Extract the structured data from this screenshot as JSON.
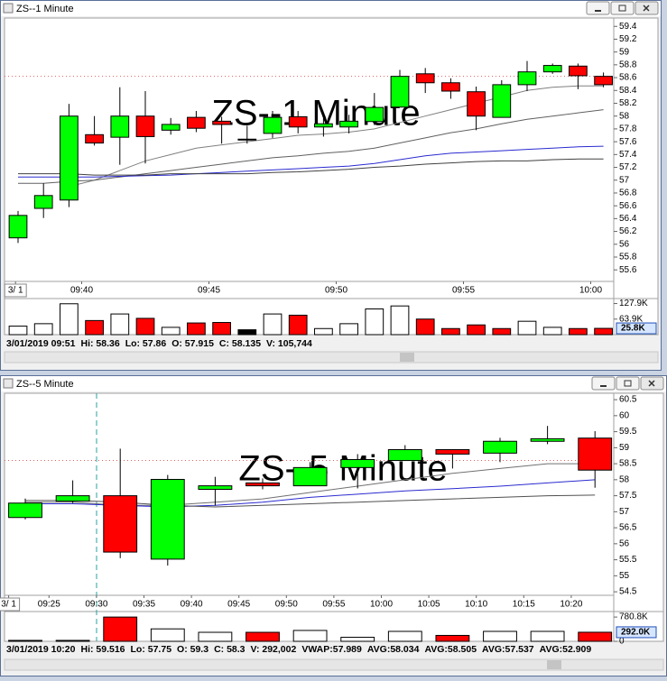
{
  "chart_data": [
    {
      "type": "candlestick",
      "title": "ZS--1 Minute",
      "watermark": "ZS--1 Minute",
      "categories": [
        null,
        null,
        null,
        null,
        null,
        null,
        null,
        null,
        null,
        null,
        null,
        null,
        null,
        null,
        null,
        null,
        null,
        null,
        null,
        null,
        null,
        null,
        null,
        null
      ],
      "open": [
        56.1,
        56.56,
        56.69,
        57.71,
        57.67,
        58.0,
        57.78,
        57.98,
        57.92,
        57.64,
        57.73,
        57.99,
        57.83,
        57.83,
        57.915,
        58.14,
        58.66,
        58.52,
        58.38,
        57.98,
        58.49,
        58.69,
        58.78,
        58.62
      ],
      "high": [
        56.52,
        56.95,
        58.19,
        58.0,
        58.45,
        58.39,
        57.97,
        58.08,
        57.99,
        57.85,
        58.08,
        58.08,
        57.97,
        58.02,
        58.36,
        58.72,
        58.75,
        58.59,
        58.46,
        58.56,
        58.86,
        58.82,
        58.82,
        58.68
      ],
      "low": [
        56.02,
        56.41,
        56.58,
        57.54,
        57.24,
        57.26,
        57.71,
        57.75,
        57.57,
        57.57,
        57.66,
        57.73,
        57.68,
        57.73,
        57.86,
        58.14,
        58.36,
        58.27,
        57.78,
        57.98,
        58.39,
        58.66,
        58.42,
        58.45
      ],
      "close": [
        56.45,
        56.76,
        58.0,
        57.58,
        58.0,
        57.68,
        57.87,
        57.81,
        57.87,
        57.64,
        57.98,
        57.83,
        57.88,
        57.92,
        58.135,
        58.62,
        58.52,
        58.39,
        58.0,
        58.49,
        58.69,
        58.79,
        58.63,
        58.49
      ],
      "up_color": "#00ff00",
      "down_color": "#ff0000",
      "lines": [
        {
          "color": "#808080",
          "values": [
            null,
            null,
            56.9,
            57.0,
            57.15,
            57.3,
            57.4,
            57.5,
            57.55,
            57.6,
            57.65,
            57.7,
            57.72,
            57.75,
            57.8,
            57.9,
            58.0,
            58.1,
            58.2,
            58.3,
            58.4,
            58.45,
            58.47,
            58.47
          ]
        },
        {
          "color": "#606060",
          "values": [
            56.95,
            56.95,
            56.98,
            57.0,
            57.05,
            57.1,
            57.15,
            57.2,
            57.25,
            57.3,
            57.35,
            57.38,
            57.42,
            57.45,
            57.5,
            57.58,
            57.66,
            57.74,
            57.8,
            57.88,
            57.95,
            58.0,
            58.05,
            58.1
          ]
        },
        {
          "color": "#2a2ad0",
          "values": [
            57.05,
            57.05,
            57.05,
            57.05,
            57.06,
            57.07,
            57.08,
            57.1,
            57.12,
            57.14,
            57.16,
            57.18,
            57.2,
            57.22,
            57.26,
            57.32,
            57.38,
            57.42,
            57.44,
            57.46,
            57.48,
            57.5,
            57.52,
            57.53
          ]
        },
        {
          "color": "#404040",
          "values": [
            57.1,
            57.1,
            57.1,
            57.08,
            57.08,
            57.08,
            57.1,
            57.1,
            57.1,
            57.1,
            57.12,
            57.13,
            57.15,
            57.17,
            57.2,
            57.22,
            57.25,
            57.27,
            57.29,
            57.3,
            57.3,
            57.32,
            57.33,
            57.33
          ]
        }
      ],
      "reference_line": 58.62,
      "ylim": [
        55.42,
        59.53
      ],
      "yticks": [
        59.4,
        59.2,
        59,
        58.8,
        58.6,
        58.4,
        58.2,
        58,
        57.8,
        57.6,
        57.4,
        57.2,
        57,
        56.8,
        56.6,
        56.4,
        56.2,
        56,
        55.8,
        55.6
      ],
      "xticks": [
        {
          "value": -0.1,
          "label": "3/ 1"
        },
        {
          "value": 2.5,
          "label": "09:40"
        },
        {
          "value": 7.5,
          "label": "09:45"
        },
        {
          "value": 12.5,
          "label": "09:50"
        },
        {
          "value": 17.5,
          "label": "09:55"
        },
        {
          "value": 22.5,
          "label": "10:00"
        }
      ],
      "volume": [
        35000,
        45000,
        127000,
        58000,
        85000,
        67000,
        30000,
        48000,
        50000,
        20000,
        85000,
        80000,
        25000,
        45000,
        105744,
        118000,
        64000,
        25000,
        40000,
        25000,
        55000,
        30000,
        25000,
        25800
      ],
      "volume_colors": [
        "#ffffff",
        "#ffffff",
        "#ffffff",
        "#ff0000",
        "#ffffff",
        "#ff0000",
        "#ffffff",
        "#ff0000",
        "#ff0000",
        "#000000",
        "#ffffff",
        "#ff0000",
        "#ffffff",
        "#ffffff",
        "#ffffff",
        "#ffffff",
        "#ff0000",
        "#ff0000",
        "#ff0000",
        "#ff0000",
        "#ffffff",
        "#ffffff",
        "#ff0000",
        "#ff0000"
      ],
      "volume_ylim": [
        0,
        141000
      ],
      "volume_ticks": [
        {
          "value": 127900,
          "label": "127.9K"
        },
        {
          "value": 63900,
          "label": "63.9K"
        }
      ],
      "volume_last": {
        "value": 25800,
        "label": "25.8K"
      },
      "status": [
        "3/01/2019 09:51",
        "Hi: 58.36",
        "Lo: 57.86",
        "O: 57.915",
        "C: 58.135",
        "V: 105,744"
      ]
    },
    {
      "type": "candlestick",
      "title": "ZS--5 Minute",
      "watermark": "ZS--5 Minute",
      "categories": [
        null,
        null,
        null,
        null,
        null,
        null,
        null,
        null,
        null,
        null,
        null,
        null,
        null
      ],
      "open": [
        56.82,
        57.33,
        57.5,
        55.52,
        57.7,
        57.9,
        57.81,
        58.38,
        58.6,
        58.94,
        58.83,
        59.2,
        59.3
      ],
      "high": [
        57.41,
        57.98,
        58.97,
        58.15,
        58.09,
        58.04,
        58.55,
        58.8,
        59.08,
        58.94,
        59.31,
        59.68,
        59.516
      ],
      "low": [
        56.76,
        57.27,
        55.55,
        55.32,
        57.19,
        57.7,
        57.81,
        57.73,
        58.6,
        58.35,
        58.55,
        59.11,
        57.75
      ],
      "close": [
        57.27,
        57.5,
        55.74,
        58.01,
        57.81,
        57.81,
        58.38,
        58.63,
        58.94,
        58.8,
        59.2,
        59.28,
        58.3
      ],
      "up_color": "#00ff00",
      "down_color": "#ff0000",
      "lines": [
        {
          "color": "#707070",
          "values": [
            57.3,
            57.3,
            57.2,
            57.2,
            57.3,
            57.4,
            57.6,
            57.8,
            58.0,
            58.2,
            58.35,
            58.5,
            58.5
          ]
        },
        {
          "color": "#2a2ad0",
          "values": [
            57.25,
            57.25,
            57.2,
            57.15,
            57.2,
            57.3,
            57.45,
            57.55,
            57.65,
            57.72,
            57.8,
            57.9,
            58.0
          ]
        },
        {
          "color": "#505050",
          "values": [
            57.35,
            57.35,
            57.3,
            57.2,
            57.15,
            57.2,
            57.25,
            57.3,
            57.35,
            57.4,
            57.45,
            57.5,
            57.52
          ]
        }
      ],
      "reference_line": 58.6,
      "ylim": [
        54.39,
        60.7
      ],
      "yticks": [
        60.5,
        60,
        59.5,
        59,
        58.5,
        58,
        57.5,
        57,
        56.5,
        56,
        55.5,
        55,
        54.5
      ],
      "xticks": [
        {
          "value": -0.35,
          "label": "3/ 1"
        },
        {
          "value": 0.5,
          "label": "09:25"
        },
        {
          "value": 1.5,
          "label": "09:30"
        },
        {
          "value": 2.5,
          "label": "09:35"
        },
        {
          "value": 3.5,
          "label": "09:40"
        },
        {
          "value": 4.5,
          "label": "09:45"
        },
        {
          "value": 5.5,
          "label": "09:50"
        },
        {
          "value": 6.5,
          "label": "09:55"
        },
        {
          "value": 7.5,
          "label": "10:00"
        },
        {
          "value": 8.5,
          "label": "10:05"
        },
        {
          "value": 9.5,
          "label": "10:10"
        },
        {
          "value": 10.5,
          "label": "10:15"
        },
        {
          "value": 11.5,
          "label": "10:20"
        }
      ],
      "volume": [
        30000,
        30000,
        780800,
        400000,
        290000,
        290000,
        350000,
        130000,
        320000,
        190000,
        320000,
        320000,
        292002
      ],
      "volume_colors": [
        "#ffffff",
        "#ffffff",
        "#ff0000",
        "#ffffff",
        "#ffffff",
        "#ff0000",
        "#ffffff",
        "#ffffff",
        "#ffffff",
        "#ff0000",
        "#ffffff",
        "#ffffff",
        "#ff0000"
      ],
      "volume_ylim": [
        0,
        900000
      ],
      "volume_ticks": [
        {
          "value": 780800,
          "label": "780.8K"
        },
        0
      ],
      "volume_last": {
        "value": 292000,
        "label": "292.0K"
      },
      "status": [
        "3/01/2019 10:20",
        "Hi: 59.516",
        "Lo: 57.75",
        "O: 59.3",
        "C: 58.3",
        "V: 292,002",
        "VWAP:57.989",
        "AVG:58.034",
        "AVG:58.505",
        "AVG:57.537",
        "AVG:52.909"
      ]
    }
  ]
}
